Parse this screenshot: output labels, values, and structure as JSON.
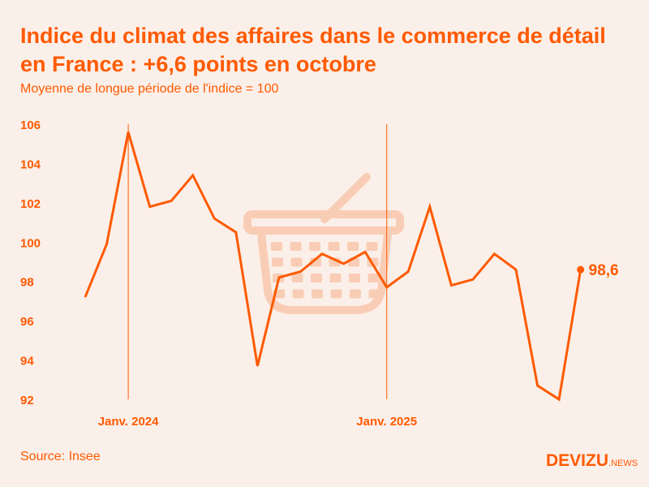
{
  "header": {
    "title": "Indice du climat des affaires dans le commerce de détail en France : +6,6 points en octobre",
    "subtitle": "Moyenne de longue période de l'indice = 100"
  },
  "footer": {
    "source": "Source: Insee",
    "logo_main": "DEVIZU",
    "logo_suffix": ".NEWS"
  },
  "colors": {
    "accent": "#ff5a00",
    "background": "#fbefe9",
    "basket": "#f9cdb5"
  },
  "chart_data": {
    "type": "line",
    "title": "Indice du climat des affaires dans le commerce de détail en France : +6,6 points en octobre",
    "subtitle": "Moyenne de longue période de l'indice = 100",
    "xlabel": "",
    "ylabel": "",
    "x": [
      "2023-11",
      "2023-12",
      "2024-01",
      "2024-02",
      "2024-03",
      "2024-04",
      "2024-05",
      "2024-06",
      "2024-07",
      "2024-08",
      "2024-09",
      "2024-10",
      "2024-11",
      "2024-12",
      "2025-01",
      "2025-02",
      "2025-03",
      "2025-04",
      "2025-05",
      "2025-06",
      "2025-07",
      "2025-08",
      "2025-09",
      "2025-10"
    ],
    "values": [
      97.2,
      99.9,
      105.6,
      101.8,
      102.1,
      103.4,
      101.2,
      100.5,
      93.7,
      98.2,
      98.5,
      99.4,
      98.9,
      99.5,
      97.7,
      98.5,
      101.8,
      97.8,
      98.1,
      99.4,
      98.6,
      92.7,
      92.0,
      98.6
    ],
    "ylim": [
      92,
      106
    ],
    "yticks": [
      "92",
      "94",
      "96",
      "98",
      "100",
      "102",
      "104",
      "106"
    ],
    "xticks": [
      {
        "label": "Janv. 2024",
        "index": 2
      },
      {
        "label": "Janv. 2025",
        "index": 14
      }
    ],
    "last_label": "98,6",
    "grid": false
  }
}
